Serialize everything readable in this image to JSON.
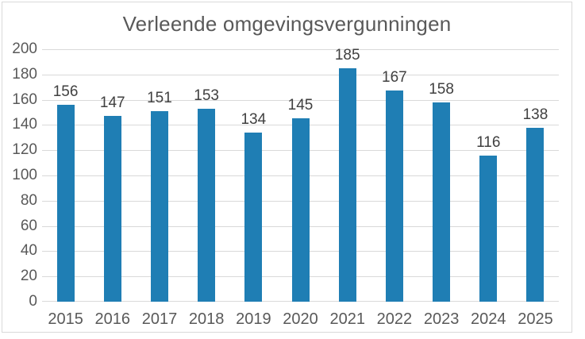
{
  "chart_data": {
    "type": "bar",
    "title": "Verleende omgevingsvergunningen",
    "categories": [
      "2015",
      "2016",
      "2017",
      "2018",
      "2019",
      "2020",
      "2021",
      "2022",
      "2023",
      "2024",
      "2025"
    ],
    "values": [
      156,
      147,
      151,
      153,
      134,
      145,
      185,
      167,
      158,
      116,
      138
    ],
    "xlabel": "",
    "ylabel": "",
    "ylim": [
      0,
      200
    ],
    "ytick_step": 20,
    "grid": true,
    "legend": false,
    "data_labels": true,
    "colors": {
      "bar": "#1F7EB4",
      "gridline": "#D9D9D9",
      "border": "#D9D9D9",
      "title": "#595959",
      "tick_label": "#595959",
      "data_label": "#404040",
      "background": "#FFFFFF"
    }
  }
}
